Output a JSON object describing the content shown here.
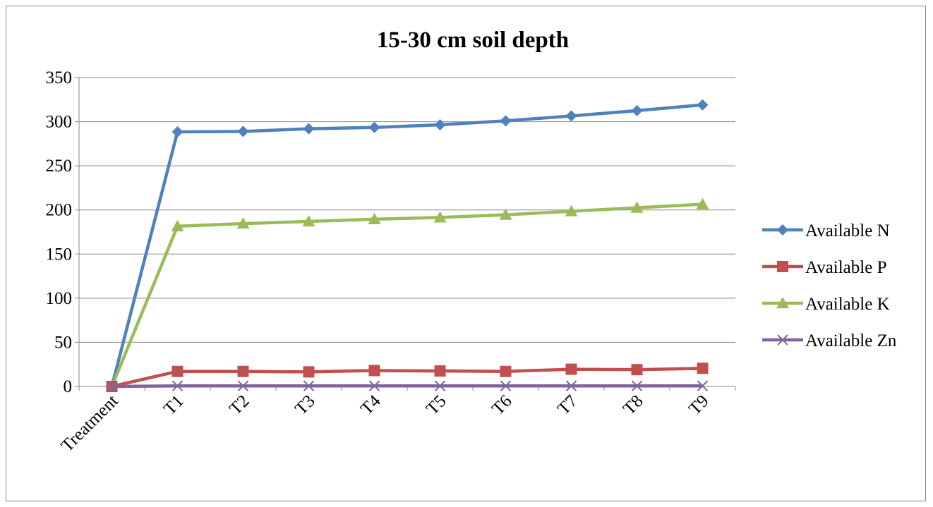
{
  "chart_data": {
    "type": "line",
    "title": "15-30 cm soil depth",
    "xlabel": "",
    "ylabel": "",
    "categories": [
      "Treatment",
      "T1",
      "T2",
      "T3",
      "T4",
      "T5",
      "T6",
      "T7",
      "T8",
      "T9"
    ],
    "ylim": [
      0,
      350
    ],
    "yticks": [
      0,
      50,
      100,
      150,
      200,
      250,
      300,
      350
    ],
    "grid": true,
    "legend_position": "right",
    "series": [
      {
        "name": "Available N",
        "color": "#4F81BD",
        "marker": "diamond",
        "values": [
          0,
          288.5,
          289,
          292,
          293.5,
          296.5,
          301,
          306.5,
          312.5,
          319
        ]
      },
      {
        "name": "Available P",
        "color": "#C0504D",
        "marker": "square",
        "values": [
          0,
          17,
          17,
          16.5,
          18,
          17.5,
          17,
          19.5,
          19,
          20.5
        ]
      },
      {
        "name": "Available K",
        "color": "#9BBB59",
        "marker": "triangle",
        "values": [
          0,
          181.5,
          184.5,
          187,
          189.5,
          191.5,
          194.5,
          198.5,
          202.5,
          206.5
        ]
      },
      {
        "name": "Available Zn",
        "color": "#8064A2",
        "marker": "x",
        "values": [
          0,
          0.6,
          0.6,
          0.6,
          0.6,
          0.6,
          0.6,
          0.6,
          0.6,
          0.6
        ]
      }
    ]
  }
}
